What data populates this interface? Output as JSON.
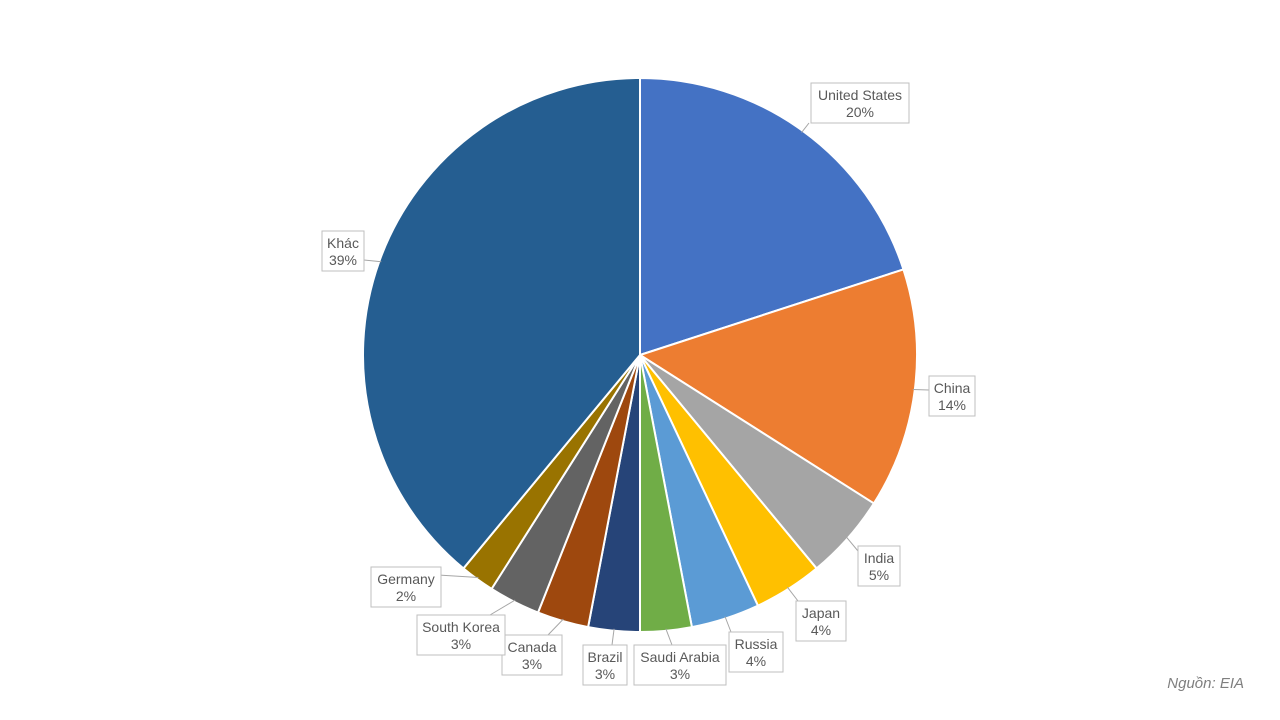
{
  "chart_data": {
    "type": "pie",
    "title": "",
    "slices": [
      {
        "name": "United States",
        "value": 20,
        "label": "20%",
        "color": "#4472C4"
      },
      {
        "name": "China",
        "value": 14,
        "label": "14%",
        "color": "#ED7D31"
      },
      {
        "name": "India",
        "value": 5,
        "label": "5%",
        "color": "#A5A5A5"
      },
      {
        "name": "Japan",
        "value": 4,
        "label": "4%",
        "color": "#FFC000"
      },
      {
        "name": "Russia",
        "value": 4,
        "label": "4%",
        "color": "#5B9BD5"
      },
      {
        "name": "Saudi Arabia",
        "value": 3,
        "label": "3%",
        "color": "#70AD47"
      },
      {
        "name": "Brazil",
        "value": 3,
        "label": "3%",
        "color": "#264478"
      },
      {
        "name": "Canada",
        "value": 3,
        "label": "3%",
        "color": "#9E480E"
      },
      {
        "name": "South Korea",
        "value": 3,
        "label": "3%",
        "color": "#636363"
      },
      {
        "name": "Germany",
        "value": 2,
        "label": "2%",
        "color": "#997300"
      },
      {
        "name": "Khác",
        "value": 39,
        "label": "39%",
        "color": "#255E91"
      }
    ]
  },
  "source": "Nguồn: EIA"
}
